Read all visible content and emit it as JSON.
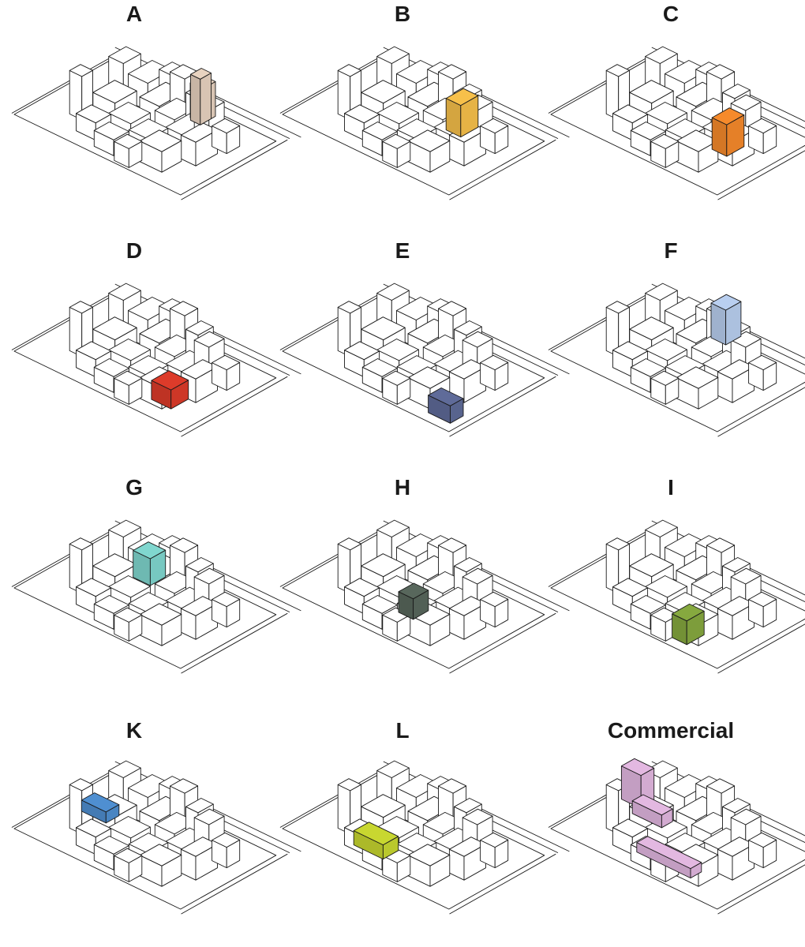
{
  "panels": [
    {
      "label": "A",
      "highlight_color": "#e8d3c0",
      "highlight": "a"
    },
    {
      "label": "B",
      "highlight_color": "#f7c04a",
      "highlight": "b"
    },
    {
      "label": "C",
      "highlight_color": "#f68a2b",
      "highlight": "c"
    },
    {
      "label": "D",
      "highlight_color": "#dd3b2a",
      "highlight": "d"
    },
    {
      "label": "E",
      "highlight_color": "#5f6b99",
      "highlight": "e"
    },
    {
      "label": "F",
      "highlight_color": "#b9cff0",
      "highlight": "f"
    },
    {
      "label": "G",
      "highlight_color": "#80d7cf",
      "highlight": "g"
    },
    {
      "label": "H",
      "highlight_color": "#58675c",
      "highlight": "h"
    },
    {
      "label": "I",
      "highlight_color": "#86a93f",
      "highlight": "i"
    },
    {
      "label": "K",
      "highlight_color": "#4f8fd1",
      "highlight": "k"
    },
    {
      "label": "L",
      "highlight_color": "#c8d730",
      "highlight": "l"
    },
    {
      "label": "Commercial",
      "highlight_color": "#e3b8e1",
      "highlight": "commercial"
    }
  ],
  "base_fill": "#ffffff",
  "line_color": "#1a1a1a"
}
